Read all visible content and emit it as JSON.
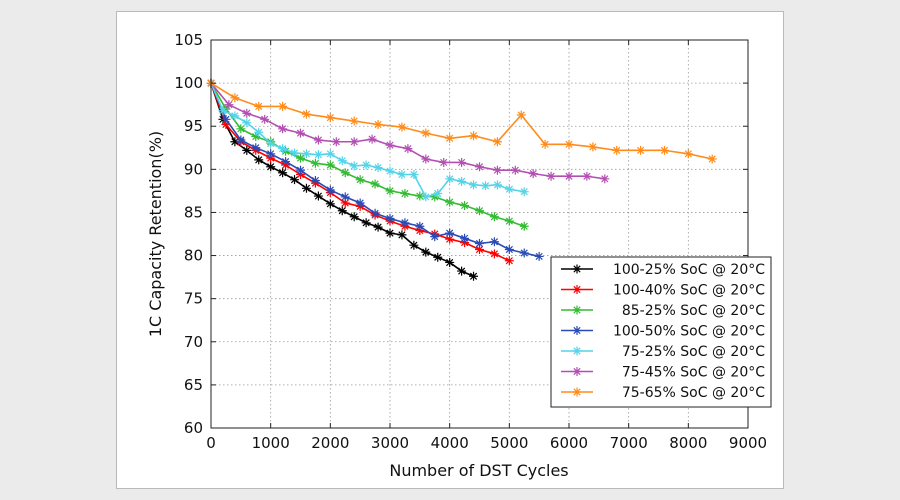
{
  "chart_data": {
    "type": "line",
    "title": "",
    "xlabel": "Number of DST Cycles",
    "ylabel": "1C Capacity Retention(%)",
    "xlim": [
      0,
      9000
    ],
    "ylim": [
      60,
      105
    ],
    "xticks": [
      "0",
      "1000",
      "2000",
      "3000",
      "4000",
      "5000",
      "6000",
      "7000",
      "8000",
      "9000"
    ],
    "yticks": [
      "60",
      "65",
      "70",
      "75",
      "80",
      "85",
      "90",
      "95",
      "100",
      "105"
    ],
    "grid": true,
    "legend_position": "bottom-right",
    "series": [
      {
        "name": "100-25% SoC @ 20°C",
        "color": "#000000",
        "marker": "asterisk",
        "x": [
          0,
          200,
          400,
          600,
          800,
          1000,
          1200,
          1400,
          1600,
          1800,
          2000,
          2200,
          2400,
          2600,
          2800,
          3000,
          3200,
          3400,
          3600,
          3800,
          4000,
          4200,
          4400
        ],
        "y": [
          100,
          95.8,
          93.2,
          92.2,
          91.1,
          90.3,
          89.6,
          88.8,
          87.8,
          86.9,
          86,
          85.2,
          84.5,
          83.8,
          83.3,
          82.6,
          82.4,
          81.2,
          80.4,
          79.8,
          79.2,
          78.2,
          77.6
        ]
      },
      {
        "name": "100-40% SoC @ 20°C",
        "color": "#ff0000",
        "marker": "asterisk",
        "x": [
          0,
          250,
          500,
          750,
          1000,
          1250,
          1500,
          1750,
          2000,
          2250,
          2500,
          2750,
          3000,
          3250,
          3500,
          3750,
          4000,
          4250,
          4500,
          4750,
          5000
        ],
        "y": [
          100,
          95.2,
          93.2,
          92.2,
          91.3,
          90.5,
          89.4,
          88.4,
          87.3,
          86.1,
          85.7,
          84.7,
          84,
          83.4,
          82.9,
          82.5,
          81.9,
          81.5,
          80.7,
          80.2,
          79.4
        ]
      },
      {
        "name": "85-25% SoC @ 20°C",
        "color": "#33bb33",
        "marker": "asterisk",
        "x": [
          0,
          250,
          500,
          750,
          1000,
          1250,
          1500,
          1750,
          2000,
          2250,
          2500,
          2750,
          3000,
          3250,
          3500,
          3750,
          4000,
          4250,
          4500,
          4750,
          5000,
          5250
        ],
        "y": [
          100,
          97,
          94.7,
          93.8,
          93.2,
          92.1,
          91.3,
          90.7,
          90.5,
          89.6,
          88.8,
          88.3,
          87.5,
          87.2,
          86.9,
          86.8,
          86.2,
          85.8,
          85.2,
          84.5,
          84,
          83.4
        ]
      },
      {
        "name": "100-50% SoC @ 20°C",
        "color": "#2a4bb5",
        "marker": "asterisk",
        "x": [
          0,
          250,
          500,
          750,
          1000,
          1250,
          1500,
          1750,
          2000,
          2250,
          2500,
          2750,
          3000,
          3250,
          3500,
          3750,
          4000,
          4250,
          4500,
          4750,
          5000,
          5250,
          5500
        ],
        "y": [
          100,
          95.8,
          93.4,
          92.5,
          91.8,
          90.9,
          89.9,
          88.7,
          87.6,
          86.8,
          86.1,
          84.9,
          84.3,
          83.8,
          83.4,
          82.2,
          82.6,
          82,
          81.4,
          81.6,
          80.7,
          80.3,
          79.9
        ]
      },
      {
        "name": "75-25% SoC @ 20°C",
        "color": "#55d4e8",
        "marker": "asterisk",
        "x": [
          0,
          200,
          400,
          600,
          800,
          1000,
          1200,
          1400,
          1600,
          1800,
          2000,
          2200,
          2400,
          2600,
          2800,
          3000,
          3200,
          3400,
          3600,
          3800,
          4000,
          4200,
          4400,
          4600,
          4800,
          5000,
          5250
        ],
        "y": [
          100,
          96.8,
          96.2,
          95.4,
          94.3,
          93,
          92.4,
          91.9,
          91.8,
          91.7,
          91.8,
          91,
          90.4,
          90.5,
          90.2,
          89.8,
          89.4,
          89.4,
          86.8,
          87.2,
          88.9,
          88.6,
          88.2,
          88.1,
          88.2,
          87.7,
          87.4
        ]
      },
      {
        "name": "75-45% SoC @ 20°C",
        "color": "#b34fb3",
        "marker": "asterisk",
        "x": [
          0,
          300,
          600,
          900,
          1200,
          1500,
          1800,
          2100,
          2400,
          2700,
          3000,
          3300,
          3600,
          3900,
          4200,
          4500,
          4800,
          5100,
          5400,
          5700,
          6000,
          6300,
          6600
        ],
        "y": [
          100,
          97.5,
          96.5,
          95.8,
          94.7,
          94.2,
          93.4,
          93.2,
          93.2,
          93.5,
          92.8,
          92.4,
          91.2,
          90.8,
          90.8,
          90.3,
          89.9,
          89.9,
          89.5,
          89.2,
          89.2,
          89.2,
          88.9
        ]
      },
      {
        "name": "75-65% SoC @ 20°C",
        "color": "#ff8c1a",
        "marker": "asterisk",
        "x": [
          0,
          400,
          800,
          1200,
          1600,
          2000,
          2400,
          2800,
          3200,
          3600,
          4000,
          4400,
          4800,
          5200,
          5600,
          6000,
          6400,
          6800,
          7200,
          7600,
          8000,
          8400
        ],
        "y": [
          100,
          98.3,
          97.3,
          97.3,
          96.4,
          96,
          95.6,
          95.2,
          94.9,
          94.2,
          93.6,
          93.9,
          93.2,
          96.3,
          92.9,
          92.9,
          92.6,
          92.2,
          92.2,
          92.2,
          91.8,
          91.2
        ]
      }
    ]
  }
}
